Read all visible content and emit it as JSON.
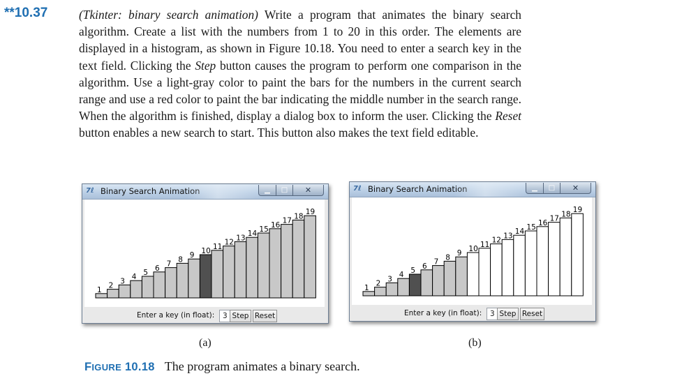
{
  "exercise": {
    "number": "**10.37",
    "title": "(Tkinter: binary search animation)",
    "text_1": " Write a program that animates the binary search algorithm. Create a list with the numbers from 1 to 20 in this order. The elements are displayed in a histogram, as shown in Figure 10.18. You need to enter a search key in the text field. Clicking the ",
    "step_word": "Step",
    "text_2": " button causes the program to perform one comparison in the algorithm. Use a light-gray color to paint the bars for the numbers in the current search range and use a red color to paint the bar indicating the middle number in the search range. When the algorithm is finished, display a dialog box to inform the user. Clicking the ",
    "reset_word": "Reset",
    "text_3": " button enables a new search to start. This button also makes the text field editable."
  },
  "colors": {
    "accent_blue": "#1f6fb2",
    "bar_in_range": "#c8c8c8",
    "bar_out_of_range": "#ffffff",
    "bar_middle": "#505050"
  },
  "windows": [
    {
      "id": "a",
      "title": "Binary Search Animation",
      "app_icon": "tk-feather-icon",
      "key_label": "Enter a key (in float):",
      "key_value": "3",
      "step_label": "Step",
      "reset_label": "Reset",
      "caption": "(a)",
      "chart_data": {
        "type": "bar",
        "categories": [
          "1",
          "2",
          "3",
          "4",
          "5",
          "6",
          "7",
          "8",
          "9",
          "10",
          "11",
          "12",
          "13",
          "14",
          "15",
          "16",
          "17",
          "18",
          "19"
        ],
        "values": [
          1,
          2,
          3,
          4,
          5,
          6,
          7,
          8,
          9,
          10,
          11,
          12,
          13,
          14,
          15,
          16,
          17,
          18,
          19
        ],
        "bar_labels": [
          "1",
          "2",
          "3",
          "4",
          "5",
          "6",
          "7",
          "8",
          "9",
          "10",
          "11",
          "12",
          "13",
          "14",
          "15",
          "16",
          "17",
          "18",
          "19"
        ],
        "search_range": [
          1,
          19
        ],
        "middle": 10
      }
    },
    {
      "id": "b",
      "title": "Binary Search Animation",
      "app_icon": "tk-feather-icon",
      "key_label": "Enter a key (in float):",
      "key_value": "3",
      "step_label": "Step",
      "reset_label": "Reset",
      "caption": "(b)",
      "chart_data": {
        "type": "bar",
        "categories": [
          "1",
          "2",
          "3",
          "4",
          "5",
          "6",
          "7",
          "8",
          "9",
          "10",
          "11",
          "12",
          "13",
          "14",
          "15",
          "16",
          "17",
          "18",
          "19"
        ],
        "values": [
          1,
          2,
          3,
          4,
          5,
          6,
          7,
          8,
          9,
          10,
          11,
          12,
          13,
          14,
          15,
          16,
          17,
          18,
          19
        ],
        "bar_labels": [
          "1",
          "2",
          "3",
          "4",
          "5",
          "6",
          "7",
          "8",
          "9",
          "10",
          "11",
          "12",
          "13",
          "14",
          "15",
          "16",
          "17",
          "18",
          "19"
        ],
        "search_range": [
          1,
          9
        ],
        "middle": 5
      }
    }
  ],
  "figure": {
    "label_prefix": "F",
    "label_smallcaps": "IGURE",
    "label_number": "10.18",
    "caption": "The program animates a binary search."
  }
}
